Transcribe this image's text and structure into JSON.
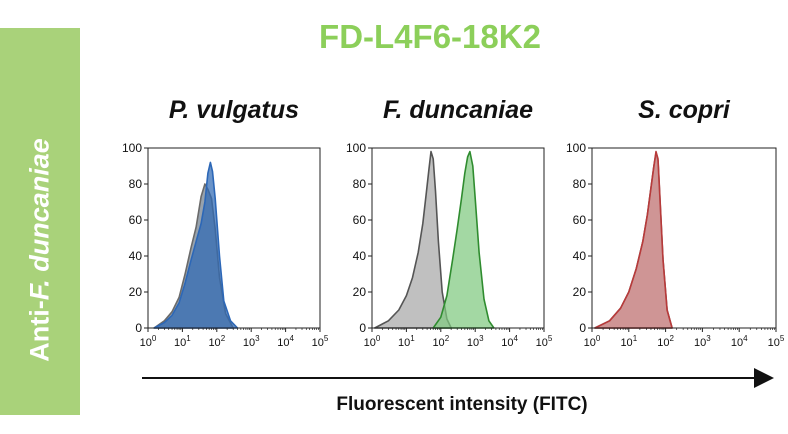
{
  "sidebar": {
    "label_prefix": "Anti-",
    "label_italic": "F. duncaniae"
  },
  "title": "FD-L4F6-18K2",
  "xlabel": "Fluorescent intensity (FITC)",
  "colors": {
    "sidebar": "#a9d27a",
    "title": "#8ccf5a",
    "control": "#a8a8a8",
    "control_line": "#555555"
  },
  "chart_data": [
    {
      "type": "area",
      "title": "P. vulgatus",
      "xscale": "log",
      "xlim": [
        1,
        100000
      ],
      "ylim": [
        0,
        100
      ],
      "yticks": [
        0,
        20,
        40,
        60,
        80,
        100
      ],
      "xticks": [
        "10^0",
        "10^1",
        "10^2",
        "10^3",
        "10^4",
        "10^5"
      ],
      "series": [
        {
          "role": "control",
          "color": "#6a6a6a",
          "fill": "#6f7e8e",
          "x": [
            1.5,
            3,
            5,
            8,
            12,
            18,
            25,
            35,
            45,
            55,
            70,
            90,
            120,
            180,
            300
          ],
          "y": [
            0,
            4,
            9,
            17,
            30,
            45,
            56,
            73,
            80,
            77,
            72,
            55,
            28,
            8,
            0
          ]
        },
        {
          "role": "sample",
          "color": "#2c67b7",
          "fill": "#2f6ab4",
          "x": [
            1.5,
            3,
            5,
            8,
            12,
            18,
            25,
            35,
            45,
            55,
            65,
            75,
            90,
            120,
            160,
            250,
            400
          ],
          "y": [
            0,
            3,
            7,
            14,
            25,
            38,
            48,
            58,
            70,
            86,
            92,
            87,
            72,
            40,
            15,
            4,
            0
          ]
        }
      ]
    },
    {
      "type": "area",
      "title": "F. duncaniae",
      "xscale": "log",
      "xlim": [
        1,
        100000
      ],
      "ylim": [
        0,
        100
      ],
      "yticks": [
        0,
        20,
        40,
        60,
        80,
        100
      ],
      "xticks": [
        "10^0",
        "10^1",
        "10^2",
        "10^3",
        "10^4",
        "10^5"
      ],
      "series": [
        {
          "role": "control",
          "color": "#555555",
          "fill": "#a8a8a8",
          "x": [
            1.2,
            3,
            6,
            10,
            15,
            22,
            30,
            38,
            45,
            52,
            60,
            70,
            85,
            110,
            150,
            200
          ],
          "y": [
            0,
            4,
            10,
            18,
            28,
            42,
            58,
            75,
            88,
            98,
            94,
            76,
            48,
            20,
            5,
            0
          ]
        },
        {
          "role": "sample",
          "color": "#2f8c2f",
          "fill": "#7fc97f",
          "x": [
            60,
            100,
            150,
            220,
            300,
            400,
            500,
            600,
            700,
            850,
            1000,
            1300,
            1800,
            2500,
            3500
          ],
          "y": [
            0,
            6,
            18,
            38,
            55,
            72,
            86,
            95,
            98,
            90,
            72,
            42,
            16,
            4,
            0
          ]
        }
      ]
    },
    {
      "type": "area",
      "title": "S. copri",
      "xscale": "log",
      "xlim": [
        1,
        100000
      ],
      "ylim": [
        0,
        100
      ],
      "yticks": [
        0,
        20,
        40,
        60,
        80,
        100
      ],
      "xticks": [
        "10^0",
        "10^1",
        "10^2",
        "10^3",
        "10^4",
        "10^5"
      ],
      "series": [
        {
          "role": "control",
          "color": "#555555",
          "fill": "#a8a8a8",
          "x": [
            1.2,
            3,
            6,
            10,
            16,
            24,
            32,
            40,
            48,
            55,
            62,
            70,
            85,
            110,
            150
          ],
          "y": [
            0,
            4,
            11,
            20,
            33,
            48,
            63,
            78,
            90,
            97,
            93,
            72,
            38,
            10,
            0
          ]
        },
        {
          "role": "sample",
          "color": "#b83a3a",
          "fill": "#d48484",
          "x": [
            1.2,
            3,
            6,
            10,
            16,
            24,
            32,
            40,
            48,
            55,
            62,
            70,
            85,
            110,
            150
          ],
          "y": [
            0,
            4,
            11,
            20,
            33,
            48,
            63,
            78,
            90,
            98,
            94,
            73,
            38,
            10,
            0
          ]
        }
      ]
    }
  ]
}
